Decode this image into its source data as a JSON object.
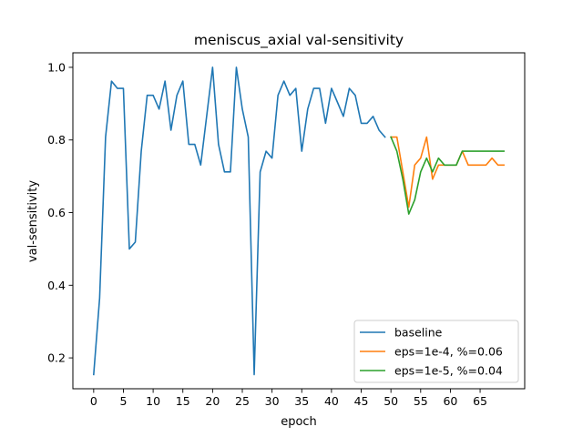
{
  "chart_data": {
    "type": "line",
    "title": "meniscus_axial val-sensitivity",
    "xlabel": "epoch",
    "ylabel": "val-sensitivity",
    "xlim": [
      -3.5,
      72.5
    ],
    "ylim": [
      0.115,
      1.04
    ],
    "xticks": [
      0,
      5,
      10,
      15,
      20,
      25,
      30,
      35,
      40,
      45,
      50,
      55,
      60,
      65
    ],
    "yticks": [
      0.2,
      0.4,
      0.6,
      0.8,
      1.0
    ],
    "ytick_labels": [
      "0.2",
      "0.4",
      "0.6",
      "0.8",
      "1.0"
    ],
    "grid": false,
    "legend_position": "lower-right",
    "series": [
      {
        "name": "baseline",
        "color": "#1f77b4",
        "x": [
          0,
          1,
          2,
          3,
          4,
          5,
          6,
          7,
          8,
          9,
          10,
          11,
          12,
          13,
          14,
          15,
          16,
          17,
          18,
          19,
          20,
          21,
          22,
          23,
          24,
          25,
          26,
          27,
          28,
          29,
          30,
          31,
          32,
          33,
          34,
          35,
          36,
          37,
          38,
          39,
          40,
          41,
          42,
          43,
          44,
          45,
          46,
          47,
          48,
          49
        ],
        "y": [
          0.154,
          0.365,
          0.808,
          0.962,
          0.942,
          0.942,
          0.5,
          0.519,
          0.769,
          0.923,
          0.923,
          0.885,
          0.962,
          0.827,
          0.923,
          0.962,
          0.788,
          0.788,
          0.731,
          0.865,
          1.0,
          0.788,
          0.712,
          0.712,
          1.0,
          0.885,
          0.808,
          0.154,
          0.712,
          0.769,
          0.75,
          0.923,
          0.962,
          0.923,
          0.942,
          0.769,
          0.885,
          0.942,
          0.942,
          0.846,
          0.942,
          0.904,
          0.865,
          0.942,
          0.923,
          0.846,
          0.846,
          0.865,
          0.827,
          0.808
        ]
      },
      {
        "name": "eps=1e-4, %=0.06",
        "color": "#ff7f0e",
        "x": [
          50,
          51,
          52,
          53,
          54,
          55,
          56,
          57,
          58,
          59,
          60,
          61,
          62,
          63,
          64,
          65,
          66,
          67,
          68,
          69
        ],
        "y": [
          0.808,
          0.808,
          0.712,
          0.615,
          0.731,
          0.75,
          0.808,
          0.692,
          0.731,
          0.731,
          0.731,
          0.731,
          0.769,
          0.731,
          0.731,
          0.731,
          0.731,
          0.75,
          0.731,
          0.731
        ]
      },
      {
        "name": "eps=1e-5, %=0.04",
        "color": "#2ca02c",
        "x": [
          50,
          51,
          52,
          53,
          54,
          55,
          56,
          57,
          58,
          59,
          60,
          61,
          62,
          63,
          64,
          65,
          66,
          67,
          68,
          69
        ],
        "y": [
          0.808,
          0.769,
          0.692,
          0.596,
          0.635,
          0.712,
          0.75,
          0.712,
          0.75,
          0.731,
          0.731,
          0.731,
          0.769,
          0.769,
          0.769,
          0.769,
          0.769,
          0.769,
          0.769,
          0.769
        ]
      }
    ]
  }
}
